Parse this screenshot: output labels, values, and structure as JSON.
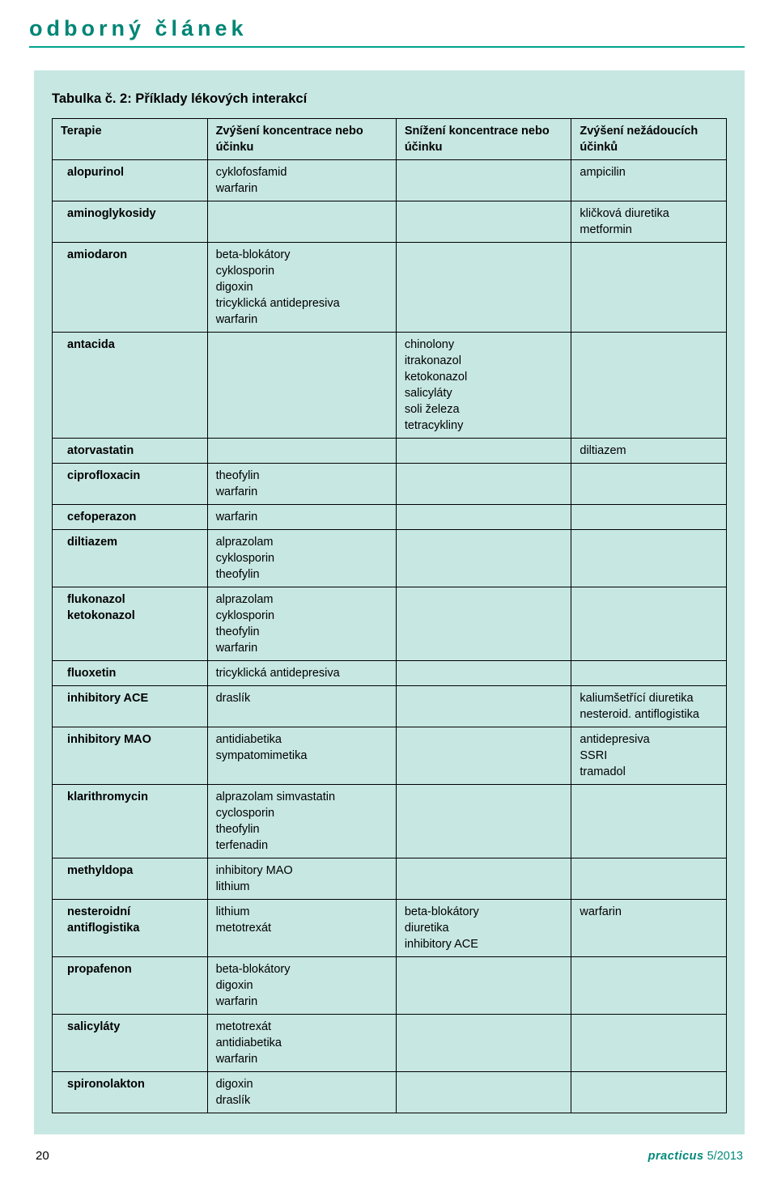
{
  "header": {
    "title": "odborný článek"
  },
  "table": {
    "title": "Tabulka č. 2: Příklady lékových interakcí",
    "columns": [
      "Terapie",
      "Zvýšení koncentrace nebo účinku",
      "Snížení koncentrace nebo účinku",
      "Zvýšení nežádoucích účinků"
    ],
    "rows": [
      {
        "c1": "alopurinol",
        "c2": "cyklofosfamid\nwarfarin",
        "c3": "",
        "c4": "ampicilin"
      },
      {
        "c1": "aminoglykosidy",
        "c2": "",
        "c3": "",
        "c4": "kličková diuretika\nmetformin"
      },
      {
        "c1": "amiodaron",
        "c2": "beta-blokátory\ncyklosporin\ndigoxin\ntricyklická antidepresiva\nwarfarin",
        "c3": "",
        "c4": ""
      },
      {
        "c1": "antacida",
        "c2": "",
        "c3": "chinolony\nitrakonazol\nketokonazol\nsalicyláty\nsoli železa\ntetracykliny",
        "c4": ""
      },
      {
        "c1": "atorvastatin",
        "c2": "",
        "c3": "",
        "c4": "diltiazem"
      },
      {
        "c1": "ciprofloxacin",
        "c2": "theofylin\nwarfarin",
        "c3": "",
        "c4": ""
      },
      {
        "c1": "cefoperazon",
        "c2": "warfarin",
        "c3": "",
        "c4": ""
      },
      {
        "c1": "diltiazem",
        "c2": "alprazolam\ncyklosporin\ntheofylin",
        "c3": "",
        "c4": ""
      },
      {
        "c1": "flukonazol\nketokonazol",
        "c2": "alprazolam\ncyklosporin\ntheofylin\nwarfarin",
        "c3": "",
        "c4": ""
      },
      {
        "c1": "fluoxetin",
        "c2": "tricyklická antidepresiva",
        "c3": "",
        "c4": ""
      },
      {
        "c1": "inhibitory ACE",
        "c2": "draslík",
        "c3": "",
        "c4": "kaliumšetřící diuretika\nnesteroid. antiflogistika"
      },
      {
        "c1": "inhibitory MAO",
        "c2": "antidiabetika\nsympatomimetika",
        "c3": "",
        "c4": "antidepresiva\nSSRI\ntramadol"
      },
      {
        "c1": "klarithromycin",
        "c2": "alprazolam simvastatin\ncyclosporin\ntheofylin\nterfenadin",
        "c3": "",
        "c4": ""
      },
      {
        "c1": "methyldopa",
        "c2": "inhibitory MAO\nlithium",
        "c3": "",
        "c4": ""
      },
      {
        "c1": "nesteroidní antiflogistika",
        "c2": "lithium\nmetotrexát",
        "c3": "beta-blokátory\ndiuretika\ninhibitory ACE",
        "c4": "warfarin"
      },
      {
        "c1": "propafenon",
        "c2": "beta-blokátory\ndigoxin\nwarfarin",
        "c3": "",
        "c4": ""
      },
      {
        "c1": "salicyláty",
        "c2": "metotrexát\nantidiabetika\nwarfarin",
        "c3": "",
        "c4": ""
      },
      {
        "c1": "spironolakton",
        "c2": "digoxin\ndraslík",
        "c3": "",
        "c4": ""
      }
    ]
  },
  "footer": {
    "page": "20",
    "brand": "practicus",
    "issue": " 5/2013"
  },
  "colors": {
    "accent": "#008575",
    "table_bg": "#c7e7e2",
    "border": "#000000"
  }
}
